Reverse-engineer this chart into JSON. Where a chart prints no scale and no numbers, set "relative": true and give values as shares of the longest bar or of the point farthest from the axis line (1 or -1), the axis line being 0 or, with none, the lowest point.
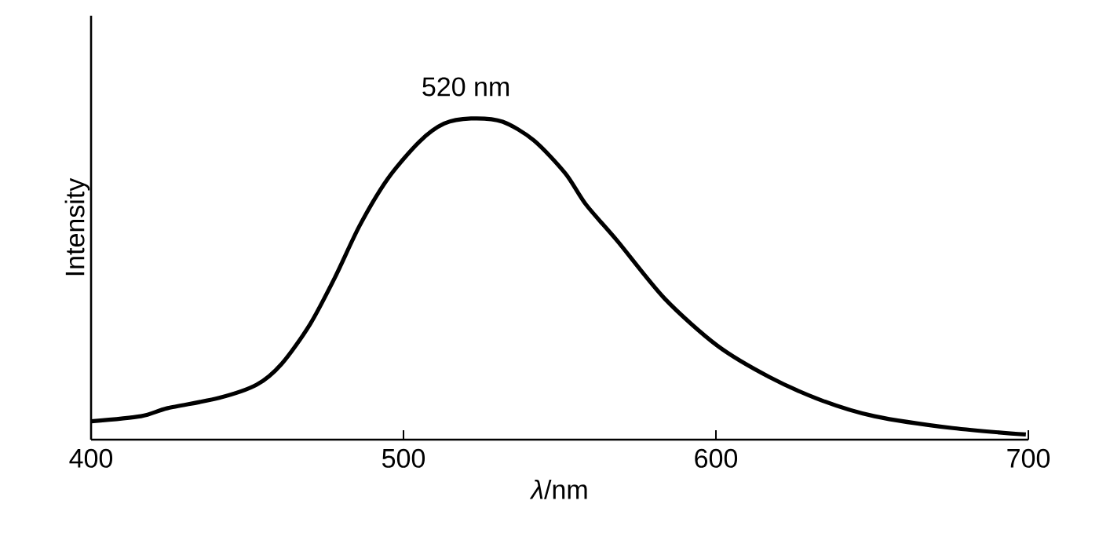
{
  "chart_data": {
    "type": "line",
    "relative": true,
    "xlabel": "*λ*/nm",
    "ylabel": "Intensity",
    "x": [
      400,
      416,
      424.5,
      441,
      453,
      461,
      470,
      478,
      486,
      495,
      505,
      513,
      521.6,
      531.7,
      541.7,
      551.8,
      558.4,
      568.5,
      583.6,
      600.4,
      617.1,
      633.9,
      650.7,
      675.8,
      699.2
    ],
    "values": [
      0.057,
      0.073,
      0.098,
      0.13,
      0.171,
      0.236,
      0.358,
      0.504,
      0.667,
      0.813,
      0.927,
      0.984,
      1.0,
      0.99,
      0.932,
      0.829,
      0.732,
      0.618,
      0.439,
      0.293,
      0.195,
      0.122,
      0.073,
      0.036,
      0.016
    ],
    "color": "#000000",
    "xlim": [
      400,
      700
    ],
    "xticks": [
      400,
      500,
      600,
      700
    ],
    "grid": false,
    "marker": "none",
    "line_style": "solid",
    "annotations": [
      {
        "text": "520 nm",
        "x": 520,
        "y": 1.0
      }
    ]
  }
}
